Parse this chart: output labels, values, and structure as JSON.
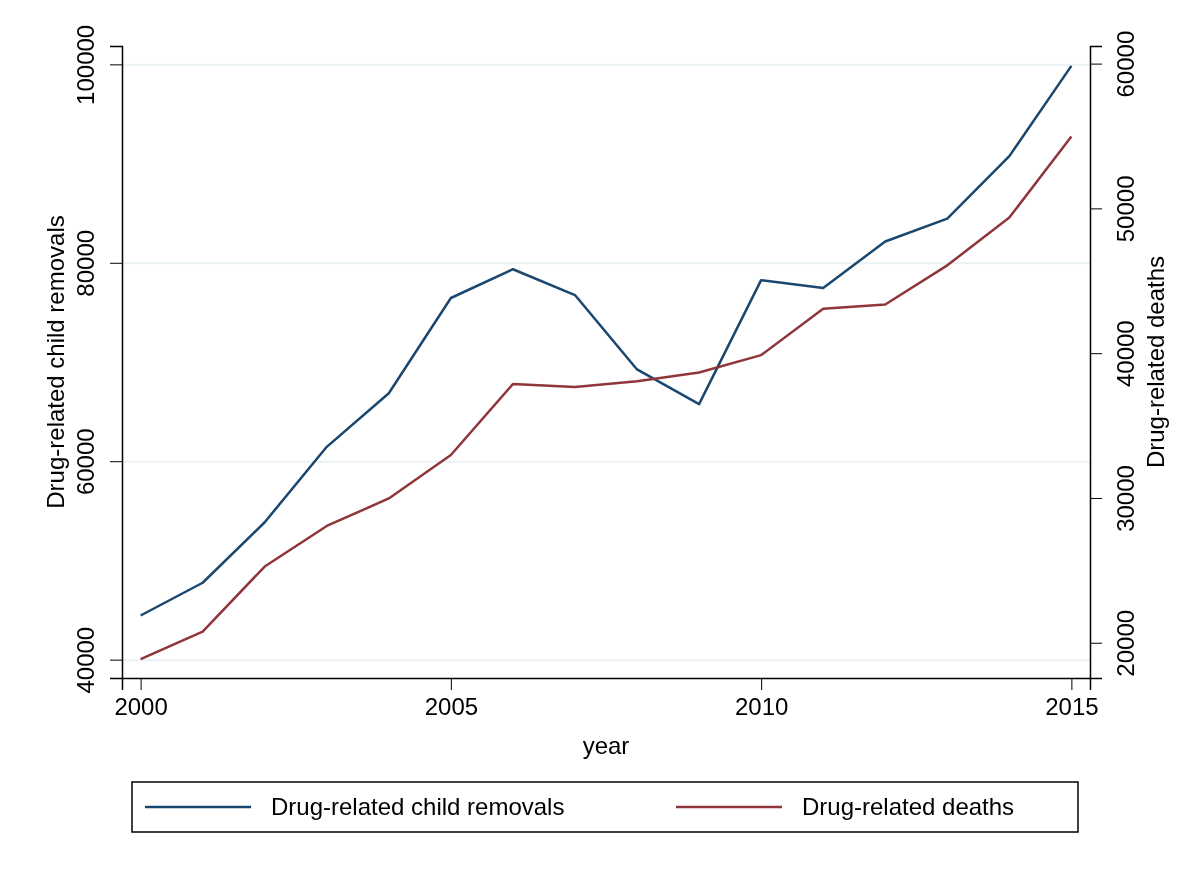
{
  "chart_data": {
    "type": "line",
    "xlabel": "year",
    "ylabel": "Drug-related child removals",
    "y2label": "Drug-related deaths",
    "x": [
      2000,
      2001,
      2002,
      2003,
      2004,
      2005,
      2006,
      2007,
      2008,
      2009,
      2010,
      2011,
      2012,
      2013,
      2014,
      2015
    ],
    "xlim": [
      1999.7,
      2015.3
    ],
    "xticks": [
      2000,
      2005,
      2010,
      2015
    ],
    "ylim": [
      38200,
      101900
    ],
    "yticks": [
      40000,
      60000,
      80000,
      100000
    ],
    "y2lim": [
      17600,
      61250
    ],
    "y2ticks": [
      20000,
      30000,
      40000,
      50000,
      60000
    ],
    "grid": "y",
    "legend": "bottom",
    "line_style": "solid",
    "marker": "none",
    "series": [
      {
        "name": "Drug-related child removals",
        "color": "#1a476f",
        "values": [
          44500,
          47800,
          53900,
          61500,
          66900,
          76500,
          79400,
          76800,
          69300,
          65800,
          78300,
          77500,
          82200,
          84500,
          90800,
          99900
        ]
      },
      {
        "name": "Drug-related deaths",
        "color": "#90353b",
        "axis": "y2",
        "values": [
          18900,
          20800,
          25300,
          28100,
          30000,
          33000,
          37900,
          37700,
          38100,
          38700,
          39900,
          43100,
          43400,
          46100,
          49400,
          55000
        ]
      }
    ]
  }
}
